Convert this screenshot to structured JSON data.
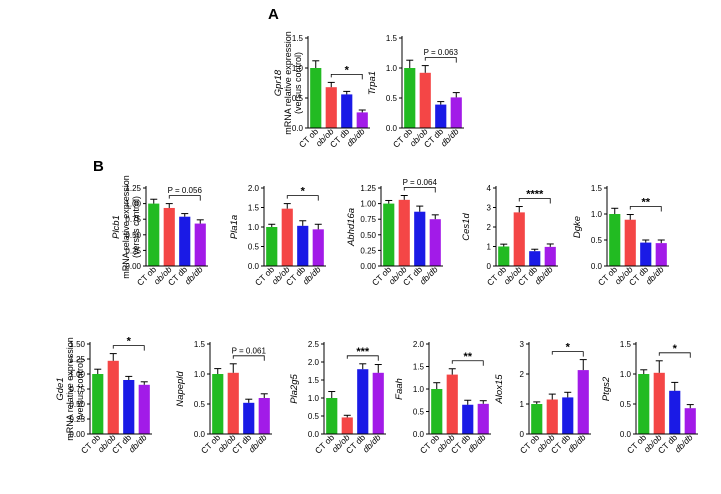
{
  "figure": {
    "panel_letters": [
      "A",
      "B"
    ],
    "shared_ylabel_lines": [
      "mRNA relative expression",
      "(versus control)"
    ]
  },
  "groups": [
    {
      "label": "CT ob",
      "italic": false
    },
    {
      "label": "ob/ob",
      "italic": true
    },
    {
      "label": "CT db",
      "italic": false
    },
    {
      "label": "db/db",
      "italic": true
    }
  ],
  "colors": {
    "CT ob": "#22bb22",
    "ob/ob": "#f44646",
    "CT db": "#1a1ae6",
    "db/db": "#a21be8"
  },
  "chart_data": [
    {
      "type": "bar",
      "panel": "A",
      "gene": "Gpr18",
      "ylabel": "Gpr18",
      "show_shared_ylabel": true,
      "categories": [
        "CT ob",
        "ob/ob",
        "CT db",
        "db/db"
      ],
      "values": [
        1.0,
        0.68,
        0.56,
        0.26
      ],
      "errors": [
        0.12,
        0.08,
        0.05,
        0.04
      ],
      "ylim": [
        0,
        1.5
      ],
      "yticks": [
        "0.0",
        "0.5",
        "1.0",
        "1.5"
      ],
      "annotation": {
        "from": "ob/ob",
        "to": "db/db",
        "text": "*"
      }
    },
    {
      "type": "bar",
      "panel": "A",
      "gene": "Trpa1",
      "ylabel": "Trpa1",
      "show_shared_ylabel": false,
      "categories": [
        "CT ob",
        "ob/ob",
        "CT db",
        "db/db"
      ],
      "values": [
        1.0,
        0.92,
        0.39,
        0.51
      ],
      "errors": [
        0.13,
        0.12,
        0.05,
        0.08
      ],
      "ylim": [
        0,
        1.5
      ],
      "yticks": [
        "0.0",
        "0.5",
        "1.0",
        "1.5"
      ],
      "annotation": {
        "from": "ob/ob",
        "to": "db/db",
        "text": "P = 0.063"
      }
    },
    {
      "type": "bar",
      "panel": "B",
      "gene": "Plcb1",
      "ylabel": "Plcb1",
      "show_shared_ylabel": true,
      "categories": [
        "CT ob",
        "ob/ob",
        "CT db",
        "db/db"
      ],
      "values": [
        1.0,
        0.93,
        0.79,
        0.68
      ],
      "errors": [
        0.07,
        0.07,
        0.05,
        0.06
      ],
      "ylim": [
        0,
        1.25
      ],
      "yticks": [
        "0.00",
        "0.25",
        "0.50",
        "0.75",
        "1.00",
        "1.25"
      ],
      "annotation": {
        "from": "ob/ob",
        "to": "db/db",
        "text": "P = 0.056"
      }
    },
    {
      "type": "bar",
      "panel": "B",
      "gene": "Pla1a",
      "ylabel": "Pla1a",
      "show_shared_ylabel": false,
      "categories": [
        "CT ob",
        "ob/ob",
        "CT db",
        "db/db"
      ],
      "values": [
        1.0,
        1.47,
        1.03,
        0.94
      ],
      "errors": [
        0.07,
        0.13,
        0.13,
        0.13
      ],
      "ylim": [
        0,
        2.0
      ],
      "yticks": [
        "0.0",
        "0.5",
        "1.0",
        "1.5",
        "2.0"
      ],
      "annotation": {
        "from": "ob/ob",
        "to": "db/db",
        "text": "*"
      }
    },
    {
      "type": "bar",
      "panel": "B",
      "gene": "Abhd16a",
      "ylabel": "Abhd16a",
      "show_shared_ylabel": false,
      "categories": [
        "CT ob",
        "ob/ob",
        "CT db",
        "db/db"
      ],
      "values": [
        1.0,
        1.06,
        0.87,
        0.75
      ],
      "errors": [
        0.05,
        0.07,
        0.09,
        0.07
      ],
      "ylim": [
        0,
        1.25
      ],
      "yticks": [
        "0.00",
        "0.25",
        "0.50",
        "0.75",
        "1.00",
        "1.25"
      ],
      "annotation": {
        "from": "ob/ob",
        "to": "db/db",
        "text": "P = 0.064"
      }
    },
    {
      "type": "bar",
      "panel": "B",
      "gene": "Ces1d",
      "ylabel": "Ces1d",
      "show_shared_ylabel": false,
      "categories": [
        "CT ob",
        "ob/ob",
        "CT db",
        "db/db"
      ],
      "values": [
        1.0,
        2.75,
        0.76,
        0.98
      ],
      "errors": [
        0.12,
        0.3,
        0.1,
        0.15
      ],
      "ylim": [
        0,
        4
      ],
      "yticks": [
        "0",
        "1",
        "2",
        "3",
        "4"
      ],
      "annotation": {
        "from": "ob/ob",
        "to": "db/db",
        "text": "****"
      }
    },
    {
      "type": "bar",
      "panel": "B",
      "gene": "Dgke",
      "ylabel": "Dgke",
      "show_shared_ylabel": false,
      "categories": [
        "CT ob",
        "ob/ob",
        "CT db",
        "db/db"
      ],
      "values": [
        1.0,
        0.89,
        0.45,
        0.44
      ],
      "errors": [
        0.11,
        0.1,
        0.05,
        0.06
      ],
      "ylim": [
        0,
        1.5
      ],
      "yticks": [
        "0.0",
        "0.5",
        "1.0",
        "1.5"
      ],
      "annotation": {
        "from": "ob/ob",
        "to": "db/db",
        "text": "**"
      }
    },
    {
      "type": "bar",
      "panel": "B",
      "gene": "Gde1",
      "ylabel": "Gde1",
      "show_shared_ylabel": true,
      "categories": [
        "CT ob",
        "ob/ob",
        "CT db",
        "db/db"
      ],
      "values": [
        1.0,
        1.22,
        0.9,
        0.82
      ],
      "errors": [
        0.08,
        0.12,
        0.06,
        0.05
      ],
      "ylim": [
        0,
        1.5
      ],
      "yticks": [
        "0.00",
        "0.25",
        "0.50",
        "0.75",
        "1.00",
        "1.25",
        "1.50"
      ],
      "annotation": {
        "from": "ob/ob",
        "to": "db/db",
        "text": "*"
      }
    },
    {
      "type": "bar",
      "panel": "B",
      "gene": "Napepld",
      "ylabel": "Napepld",
      "show_shared_ylabel": false,
      "categories": [
        "CT ob",
        "ob/ob",
        "CT db",
        "db/db"
      ],
      "values": [
        1.0,
        1.02,
        0.52,
        0.6
      ],
      "errors": [
        0.09,
        0.15,
        0.06,
        0.07
      ],
      "ylim": [
        0,
        1.5
      ],
      "yticks": [
        "0.0",
        "0.5",
        "1.0",
        "1.5"
      ],
      "annotation": {
        "from": "ob/ob",
        "to": "db/db",
        "text": "P = 0.061"
      }
    },
    {
      "type": "bar",
      "panel": "B",
      "gene": "Pla2g5",
      "ylabel": "Pla2g5",
      "show_shared_ylabel": false,
      "categories": [
        "CT ob",
        "ob/ob",
        "CT db",
        "db/db"
      ],
      "values": [
        1.0,
        0.46,
        1.8,
        1.7
      ],
      "errors": [
        0.18,
        0.06,
        0.15,
        0.23
      ],
      "ylim": [
        0,
        2.5
      ],
      "yticks": [
        "0.0",
        "0.5",
        "1.0",
        "1.5",
        "2.0",
        "2.5"
      ],
      "annotation": {
        "from": "ob/ob",
        "to": "db/db",
        "text": "***"
      }
    },
    {
      "type": "bar",
      "panel": "B",
      "gene": "Faah",
      "ylabel": "Faah",
      "show_shared_ylabel": false,
      "categories": [
        "CT ob",
        "ob/ob",
        "CT db",
        "db/db"
      ],
      "values": [
        1.0,
        1.32,
        0.65,
        0.67
      ],
      "errors": [
        0.14,
        0.13,
        0.1,
        0.07
      ],
      "ylim": [
        0,
        2.0
      ],
      "yticks": [
        "0.0",
        "0.5",
        "1.0",
        "1.5",
        "2.0"
      ],
      "annotation": {
        "from": "ob/ob",
        "to": "db/db",
        "text": "**"
      }
    },
    {
      "type": "bar",
      "panel": "B",
      "gene": "Alox15",
      "ylabel": "Alox15",
      "show_shared_ylabel": false,
      "categories": [
        "CT ob",
        "ob/ob",
        "CT db",
        "db/db"
      ],
      "values": [
        1.0,
        1.15,
        1.22,
        2.13
      ],
      "errors": [
        0.07,
        0.18,
        0.17,
        0.35
      ],
      "ylim": [
        0,
        3
      ],
      "yticks": [
        "0",
        "1",
        "2",
        "3"
      ],
      "annotation": {
        "from": "ob/ob",
        "to": "db/db",
        "text": "*"
      }
    },
    {
      "type": "bar",
      "panel": "B",
      "gene": "Ptgs2",
      "ylabel": "Ptgs2",
      "show_shared_ylabel": false,
      "categories": [
        "CT ob",
        "ob/ob",
        "CT db",
        "db/db"
      ],
      "values": [
        1.0,
        1.02,
        0.72,
        0.43
      ],
      "errors": [
        0.07,
        0.2,
        0.14,
        0.06
      ],
      "ylim": [
        0,
        1.5
      ],
      "yticks": [
        "0.0",
        "0.5",
        "1.0",
        "1.5"
      ],
      "annotation": {
        "from": "ob/ob",
        "to": "db/db",
        "text": "*"
      }
    }
  ]
}
